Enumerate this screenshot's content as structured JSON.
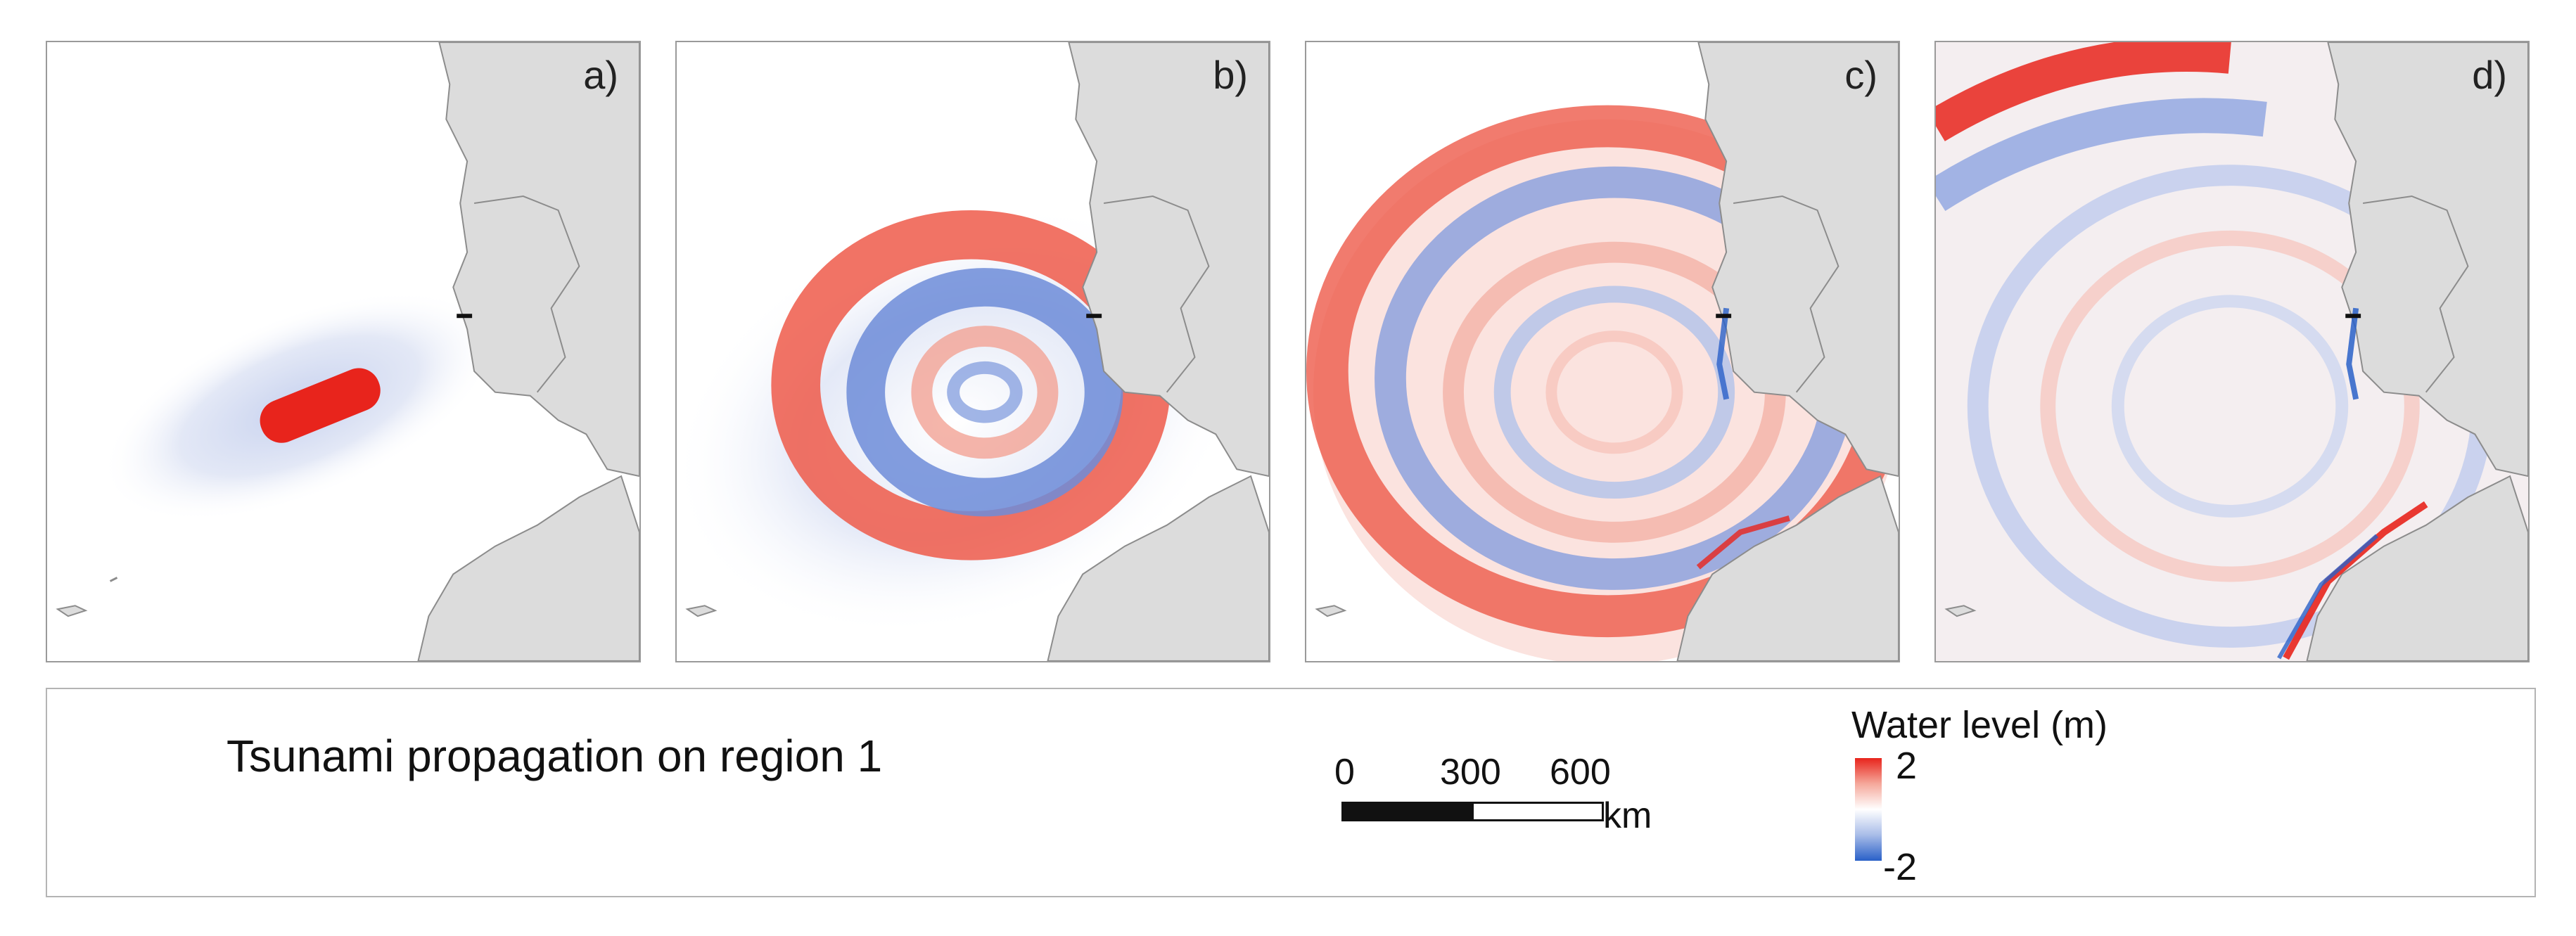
{
  "panels": [
    {
      "id": "a",
      "label": "a)"
    },
    {
      "id": "b",
      "label": "b)"
    },
    {
      "id": "c",
      "label": "c)"
    },
    {
      "id": "d",
      "label": "d)"
    }
  ],
  "legend": {
    "caption": "Tsunami propagation on region 1",
    "scale_bar": {
      "ticks": [
        "0",
        "300",
        "600"
      ],
      "unit": "km"
    },
    "colorbar": {
      "title": "Water level (m)",
      "max": "2",
      "min": "-2",
      "colors": {
        "positive": "#e8241c",
        "zero": "#ffffff",
        "negative": "#2960c8"
      }
    }
  },
  "colors": {
    "land": "#dcdcdc",
    "land_border": "#8c8c8c",
    "frame": "#9a9a9a"
  }
}
